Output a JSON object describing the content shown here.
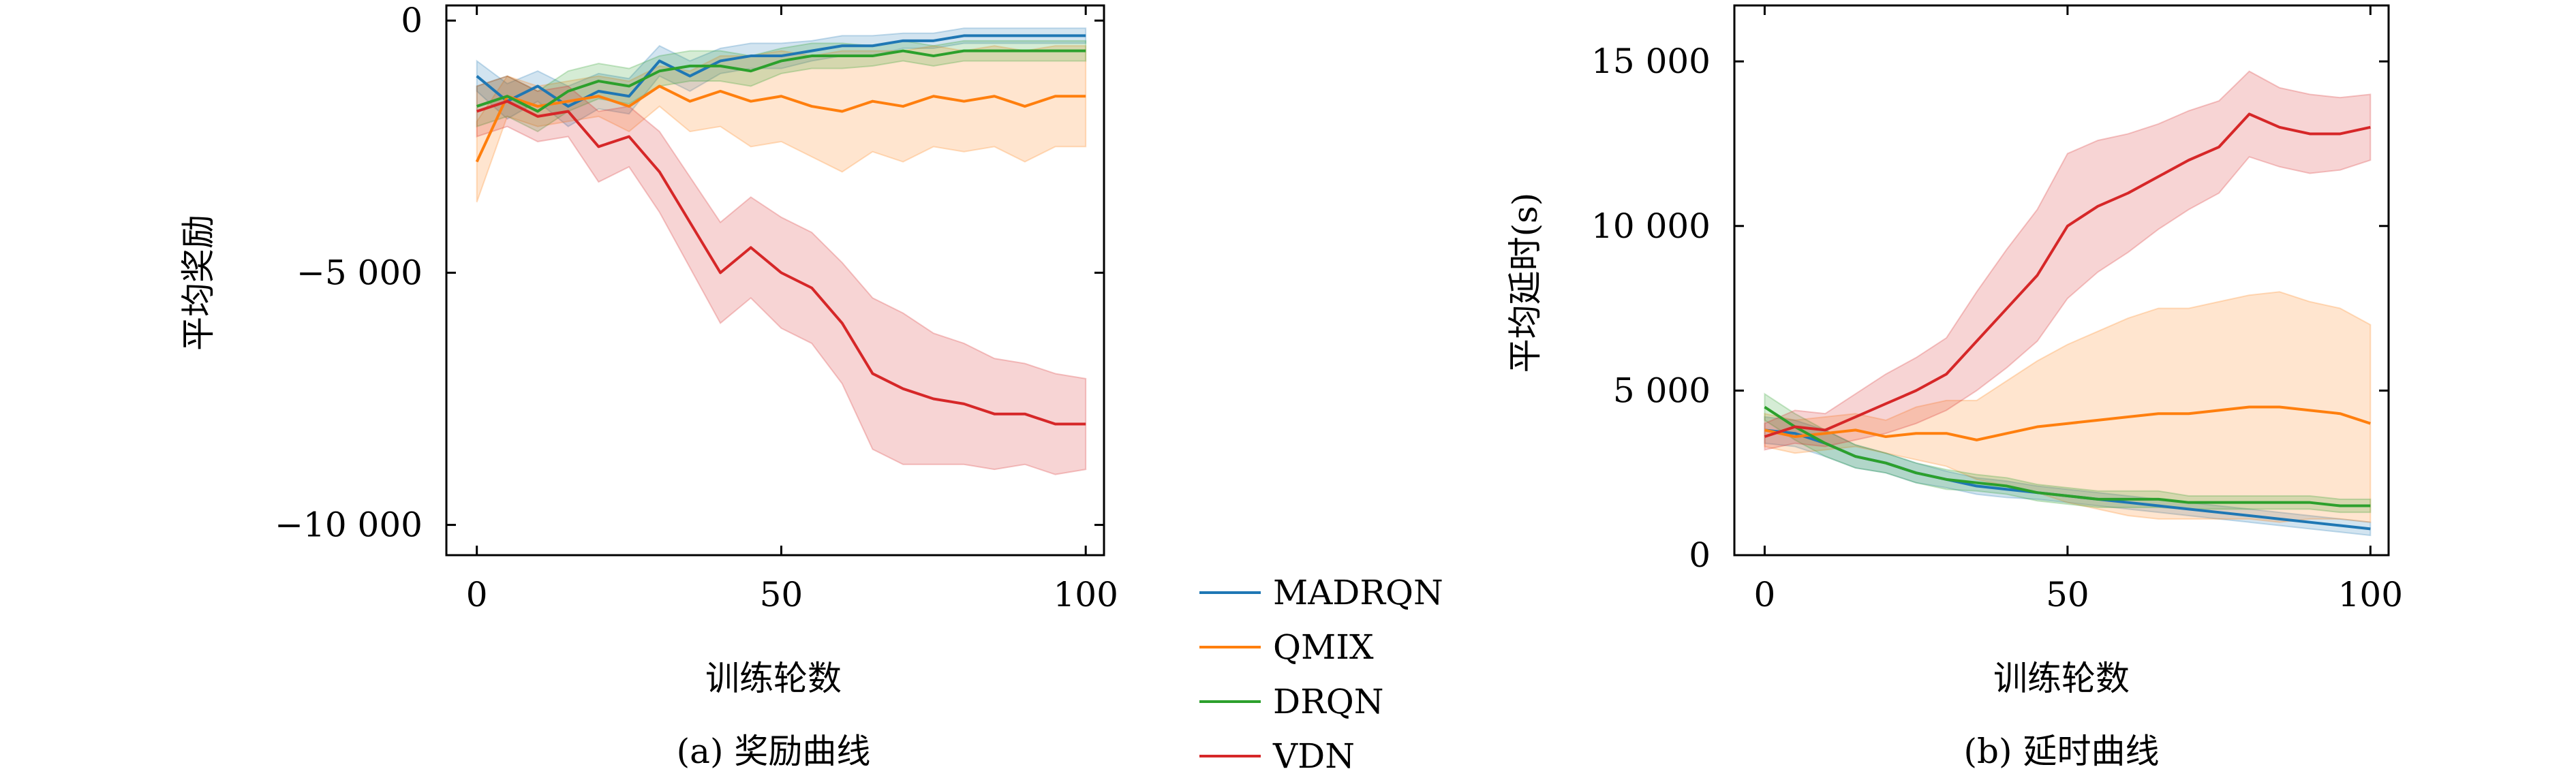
{
  "legend": [
    {
      "name": "MADRQN",
      "color": "#1f77b4"
    },
    {
      "name": "QMIX",
      "color": "#ff7f0e"
    },
    {
      "name": "DRQN",
      "color": "#2ca02c"
    },
    {
      "name": "VDN",
      "color": "#d62728"
    }
  ],
  "chart_data": [
    {
      "type": "line",
      "caption": "(a) 奖励曲线",
      "xlabel": "训练轮数",
      "ylabel": "平均奖励",
      "xlim": [
        -5,
        103
      ],
      "ylim": [
        -10600,
        300
      ],
      "xticks": [
        0,
        50,
        100
      ],
      "xtick_labels": [
        "0",
        "50",
        "100"
      ],
      "yticks": [
        0,
        -5000,
        -10000
      ],
      "ytick_labels": [
        "0",
        "−5 000",
        "−10 000"
      ],
      "grid": false,
      "band_description": "shaded variance band around each series",
      "series": [
        {
          "name": "MADRQN",
          "color": "#1f77b4",
          "x": [
            0,
            5,
            10,
            15,
            20,
            25,
            30,
            35,
            40,
            45,
            50,
            55,
            60,
            65,
            70,
            75,
            80,
            85,
            90,
            95,
            100
          ],
          "y": [
            -1100,
            -1600,
            -1300,
            -1700,
            -1400,
            -1500,
            -800,
            -1100,
            -800,
            -700,
            -700,
            -600,
            -500,
            -500,
            -400,
            -400,
            -300,
            -300,
            -300,
            -300,
            -300
          ],
          "band": [
            300,
            350,
            300,
            400,
            350,
            350,
            300,
            300,
            250,
            250,
            250,
            200,
            200,
            200,
            150,
            150,
            150,
            150,
            150,
            150,
            150
          ]
        },
        {
          "name": "QMIX",
          "color": "#ff7f0e",
          "x": [
            0,
            5,
            10,
            15,
            20,
            25,
            30,
            35,
            40,
            45,
            50,
            55,
            60,
            65,
            70,
            75,
            80,
            85,
            90,
            95,
            100
          ],
          "y": [
            -2800,
            -1500,
            -1700,
            -1600,
            -1500,
            -1700,
            -1300,
            -1600,
            -1400,
            -1600,
            -1500,
            -1700,
            -1800,
            -1600,
            -1700,
            -1500,
            -1600,
            -1500,
            -1700,
            -1500,
            -1500
          ],
          "band": [
            800,
            400,
            400,
            400,
            400,
            500,
            400,
            600,
            700,
            900,
            900,
            1000,
            1200,
            1000,
            1100,
            1000,
            1000,
            1000,
            1100,
            1000,
            1000
          ]
        },
        {
          "name": "DRQN",
          "color": "#2ca02c",
          "x": [
            0,
            5,
            10,
            15,
            20,
            25,
            30,
            35,
            40,
            45,
            50,
            55,
            60,
            65,
            70,
            75,
            80,
            85,
            90,
            95,
            100
          ],
          "y": [
            -1700,
            -1500,
            -1800,
            -1400,
            -1200,
            -1300,
            -1000,
            -900,
            -900,
            -1000,
            -800,
            -700,
            -700,
            -700,
            -600,
            -700,
            -600,
            -600,
            -600,
            -600,
            -600
          ],
          "band": [
            400,
            400,
            400,
            400,
            350,
            350,
            300,
            300,
            300,
            300,
            250,
            250,
            250,
            200,
            200,
            200,
            200,
            200,
            200,
            200,
            200
          ]
        },
        {
          "name": "VDN",
          "color": "#d62728",
          "x": [
            0,
            5,
            10,
            15,
            20,
            25,
            30,
            35,
            40,
            45,
            50,
            55,
            60,
            65,
            70,
            75,
            80,
            85,
            90,
            95,
            100
          ],
          "y": [
            -1800,
            -1600,
            -1900,
            -1800,
            -2500,
            -2300,
            -3000,
            -4000,
            -5000,
            -4500,
            -5000,
            -5300,
            -6000,
            -7000,
            -7300,
            -7500,
            -7600,
            -7800,
            -7800,
            -8000,
            -8000
          ],
          "band": [
            500,
            500,
            500,
            500,
            700,
            600,
            800,
            900,
            1000,
            1000,
            1100,
            1100,
            1200,
            1500,
            1500,
            1300,
            1200,
            1100,
            1000,
            1000,
            900
          ]
        }
      ]
    },
    {
      "type": "line",
      "caption": "(b) 延时曲线",
      "xlabel": "训练轮数",
      "ylabel": "平均延时(s)",
      "xlim": [
        -5,
        103
      ],
      "ylim": [
        0,
        16700
      ],
      "xticks": [
        0,
        50,
        100
      ],
      "xtick_labels": [
        "0",
        "50",
        "100"
      ],
      "yticks": [
        0,
        5000,
        10000,
        15000
      ],
      "ytick_labels": [
        "0",
        "5 000",
        "10 000",
        "15 000"
      ],
      "grid": false,
      "series": [
        {
          "name": "MADRQN",
          "color": "#1f77b4",
          "x": [
            0,
            5,
            10,
            15,
            20,
            25,
            30,
            35,
            40,
            45,
            50,
            55,
            60,
            65,
            70,
            75,
            80,
            85,
            90,
            95,
            100
          ],
          "y": [
            3800,
            3700,
            3400,
            3000,
            2800,
            2500,
            2300,
            2100,
            2000,
            1900,
            1800,
            1700,
            1600,
            1500,
            1400,
            1300,
            1200,
            1100,
            1000,
            900,
            800
          ],
          "band": [
            400,
            400,
            400,
            350,
            300,
            300,
            250,
            250,
            250,
            200,
            200,
            200,
            200,
            200,
            200,
            200,
            200,
            200,
            200,
            200,
            200
          ]
        },
        {
          "name": "QMIX",
          "color": "#ff7f0e",
          "x": [
            0,
            5,
            10,
            15,
            20,
            25,
            30,
            35,
            40,
            45,
            50,
            55,
            60,
            65,
            70,
            75,
            80,
            85,
            90,
            95,
            100
          ],
          "y": [
            3800,
            3600,
            3700,
            3800,
            3600,
            3700,
            3700,
            3500,
            3700,
            3900,
            4000,
            4100,
            4200,
            4300,
            4300,
            4400,
            4500,
            4500,
            4400,
            4300,
            4000
          ],
          "band": [
            500,
            500,
            500,
            500,
            500,
            800,
            1000,
            1200,
            1600,
            2000,
            2400,
            2700,
            3000,
            3200,
            3200,
            3300,
            3400,
            3500,
            3300,
            3200,
            3000
          ]
        },
        {
          "name": "DRQN",
          "color": "#2ca02c",
          "x": [
            0,
            5,
            10,
            15,
            20,
            25,
            30,
            35,
            40,
            45,
            50,
            55,
            60,
            65,
            70,
            75,
            80,
            85,
            90,
            95,
            100
          ],
          "y": [
            4500,
            3900,
            3400,
            3000,
            2800,
            2500,
            2300,
            2200,
            2100,
            1900,
            1800,
            1700,
            1700,
            1700,
            1600,
            1600,
            1600,
            1600,
            1600,
            1500,
            1500
          ],
          "band": [
            400,
            400,
            400,
            350,
            300,
            300,
            300,
            250,
            250,
            250,
            250,
            250,
            250,
            250,
            200,
            200,
            200,
            200,
            200,
            200,
            200
          ]
        },
        {
          "name": "VDN",
          "color": "#d62728",
          "x": [
            0,
            5,
            10,
            15,
            20,
            25,
            30,
            35,
            40,
            45,
            50,
            55,
            60,
            65,
            70,
            75,
            80,
            85,
            90,
            95,
            100
          ],
          "y": [
            3600,
            3900,
            3800,
            4200,
            4600,
            5000,
            5500,
            6500,
            7500,
            8500,
            10000,
            10600,
            11000,
            11500,
            12000,
            12400,
            13400,
            13000,
            12800,
            12800,
            13000
          ],
          "band": [
            400,
            500,
            500,
            700,
            900,
            1000,
            1100,
            1500,
            1800,
            2000,
            2200,
            2000,
            1800,
            1600,
            1500,
            1400,
            1300,
            1200,
            1200,
            1100,
            1000
          ]
        }
      ]
    }
  ]
}
